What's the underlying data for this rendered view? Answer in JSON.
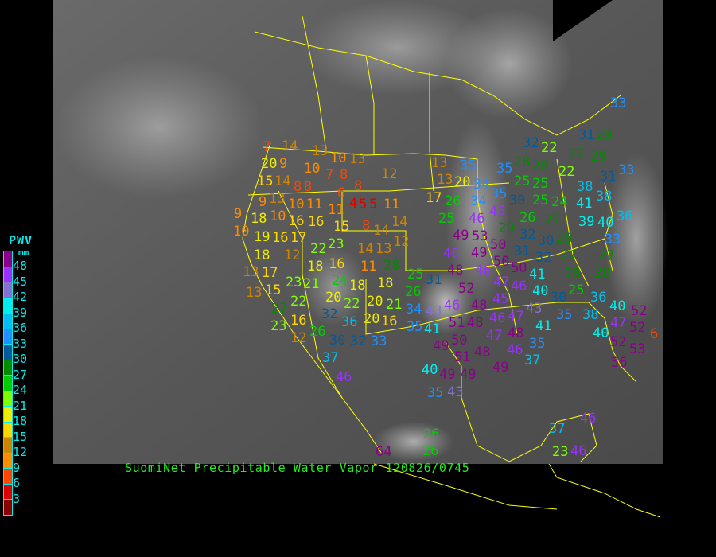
{
  "caption": "SuomiNet Precipitable Water Vapor 120826/0745",
  "legend": {
    "title": "PWV",
    "unit": "mm",
    "colors": [
      "#8b008b",
      "#9b30ff",
      "#8470d0",
      "#00eeee",
      "#00bfee",
      "#1e90ff",
      "#005a9c",
      "#008b00",
      "#00cd00",
      "#7fff00",
      "#eeee00",
      "#ffd700",
      "#cd8500",
      "#ff8c00",
      "#ff4500",
      "#dd0000",
      "#8b0000"
    ],
    "ticks": [
      "48",
      "45",
      "42",
      "39",
      "36",
      "33",
      "30",
      "27",
      "24",
      "21",
      "18",
      "15",
      "12",
      "9",
      "6",
      "3"
    ]
  },
  "colors": {
    "boundaries": "#ffff00",
    "background": "#000000"
  },
  "stations": [
    7,
    14,
    20,
    13,
    10,
    13,
    9,
    10,
    7,
    8,
    15,
    14,
    12,
    13,
    8,
    8,
    6,
    8,
    4,
    9,
    10,
    11,
    11,
    5,
    5,
    11,
    9,
    18,
    10,
    16,
    16,
    15,
    14,
    10,
    19,
    8,
    23,
    16,
    17,
    14,
    13,
    12,
    22,
    18,
    12,
    14,
    16,
    18,
    11,
    28,
    17,
    13,
    24,
    15,
    18,
    18,
    25,
    13,
    23,
    21,
    26,
    20,
    22,
    27,
    22,
    20,
    21,
    20,
    32,
    34,
    16,
    26,
    36,
    16,
    23,
    30,
    35,
    41,
    12,
    32,
    33,
    43,
    13,
    13,
    20,
    17,
    26,
    25,
    35,
    34,
    34,
    35,
    46,
    45,
    35,
    28,
    28,
    22,
    27,
    29,
    25,
    25,
    22,
    25,
    30,
    26,
    24,
    31,
    33,
    38,
    41,
    38,
    39,
    40,
    36,
    29,
    32,
    27,
    31,
    30,
    28,
    33,
    49,
    53,
    50,
    50,
    46,
    49,
    50,
    32,
    27,
    27,
    28,
    48,
    46,
    47,
    52,
    45,
    48,
    41,
    46,
    28,
    25,
    31,
    46,
    40,
    46,
    48,
    51,
    43,
    30,
    36,
    47,
    47,
    48,
    35,
    38,
    40,
    47,
    50,
    48,
    41,
    46,
    35,
    37,
    40,
    52,
    52,
    6,
    49,
    49,
    51,
    52,
    53,
    56,
    49,
    49,
    40,
    37,
    46,
    35,
    43,
    26,
    26,
    64,
    37,
    46,
    46,
    23,
    33,
    31,
    29,
    32
  ]
}
